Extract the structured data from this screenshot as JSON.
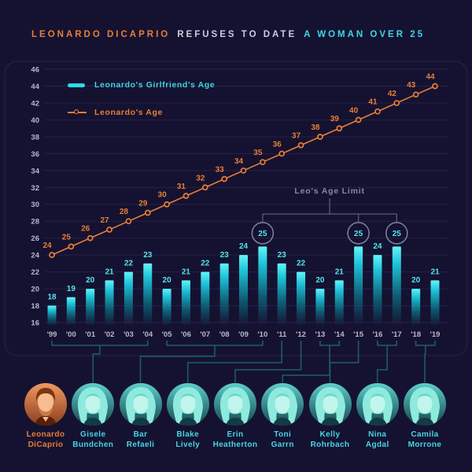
{
  "title": {
    "part1": "LEONARDO DICAPRIO",
    "part2": "REFUSES TO DATE",
    "part3": "A WOMAN OVER 25"
  },
  "legend": {
    "girlfriend_label": "Leonardo's Girlfriend's Age",
    "leo_label": "Leonardo's Age"
  },
  "annotation": {
    "label": "Leo's Age Limit",
    "circled_years": [
      "'10",
      "'15",
      "'17"
    ],
    "circled_value": 25
  },
  "chart_data": {
    "type": "bar+line",
    "categories": [
      "'99",
      "'00",
      "'01",
      "'02",
      "'03",
      "'04",
      "'05",
      "'06",
      "'07",
      "'08",
      "'09",
      "'10",
      "'11",
      "'12",
      "'13",
      "'14",
      "'15",
      "'16",
      "'17",
      "'18",
      "'19"
    ],
    "series": [
      {
        "name": "Leonardo's Girlfriend's Age",
        "type": "bar",
        "values": [
          18,
          19,
          20,
          21,
          22,
          23,
          20,
          21,
          22,
          23,
          24,
          25,
          23,
          22,
          20,
          21,
          25,
          24,
          25,
          20,
          21
        ]
      },
      {
        "name": "Leonardo's Age",
        "type": "line",
        "values": [
          24,
          25,
          26,
          27,
          28,
          29,
          30,
          31,
          32,
          33,
          34,
          35,
          36,
          37,
          38,
          39,
          40,
          41,
          42,
          43,
          44
        ]
      }
    ],
    "ylim": [
      16,
      46
    ],
    "ytick_step": 2,
    "grid": true,
    "legend_position": "top-left"
  },
  "people": [
    {
      "name": "Leonardo DiCaprio",
      "tint": "orange",
      "years": []
    },
    {
      "name": "Gisele Bundchen",
      "tint": "cyan",
      "years": [
        "'99",
        "'04"
      ]
    },
    {
      "name": "Bar Refaeli",
      "tint": "cyan",
      "years": [
        "'05",
        "'10"
      ]
    },
    {
      "name": "Blake Lively",
      "tint": "cyan",
      "years": [
        "'11"
      ]
    },
    {
      "name": "Erin Heatherton",
      "tint": "cyan",
      "years": [
        "'12"
      ]
    },
    {
      "name": "Toni Garrn",
      "tint": "cyan",
      "years": [
        "'13",
        "'14"
      ]
    },
    {
      "name": "Kelly Rohrbach",
      "tint": "cyan",
      "years": [
        "'15"
      ]
    },
    {
      "name": "Nina Agdal",
      "tint": "cyan",
      "years": [
        "'16",
        "'17"
      ]
    },
    {
      "name": "Camila Morrone",
      "tint": "cyan",
      "years": [
        "'18",
        "'19"
      ]
    }
  ],
  "colors": {
    "background": "#151231",
    "bar_top": "#62f4fa",
    "bar_mid": "#1fc3d8",
    "bar_deep": "#0d5b72",
    "bar_label": "#53e4ee",
    "line": "#e87e35",
    "axis_text": "#b6b9cb",
    "grid": "#262147",
    "panel_border": "#232049",
    "annotation_line": "#565b78",
    "annotation_circle": "#7d849f",
    "connector": "#1d5f6d",
    "name_text": "#45d5e3",
    "name_self": "#e87e35"
  }
}
